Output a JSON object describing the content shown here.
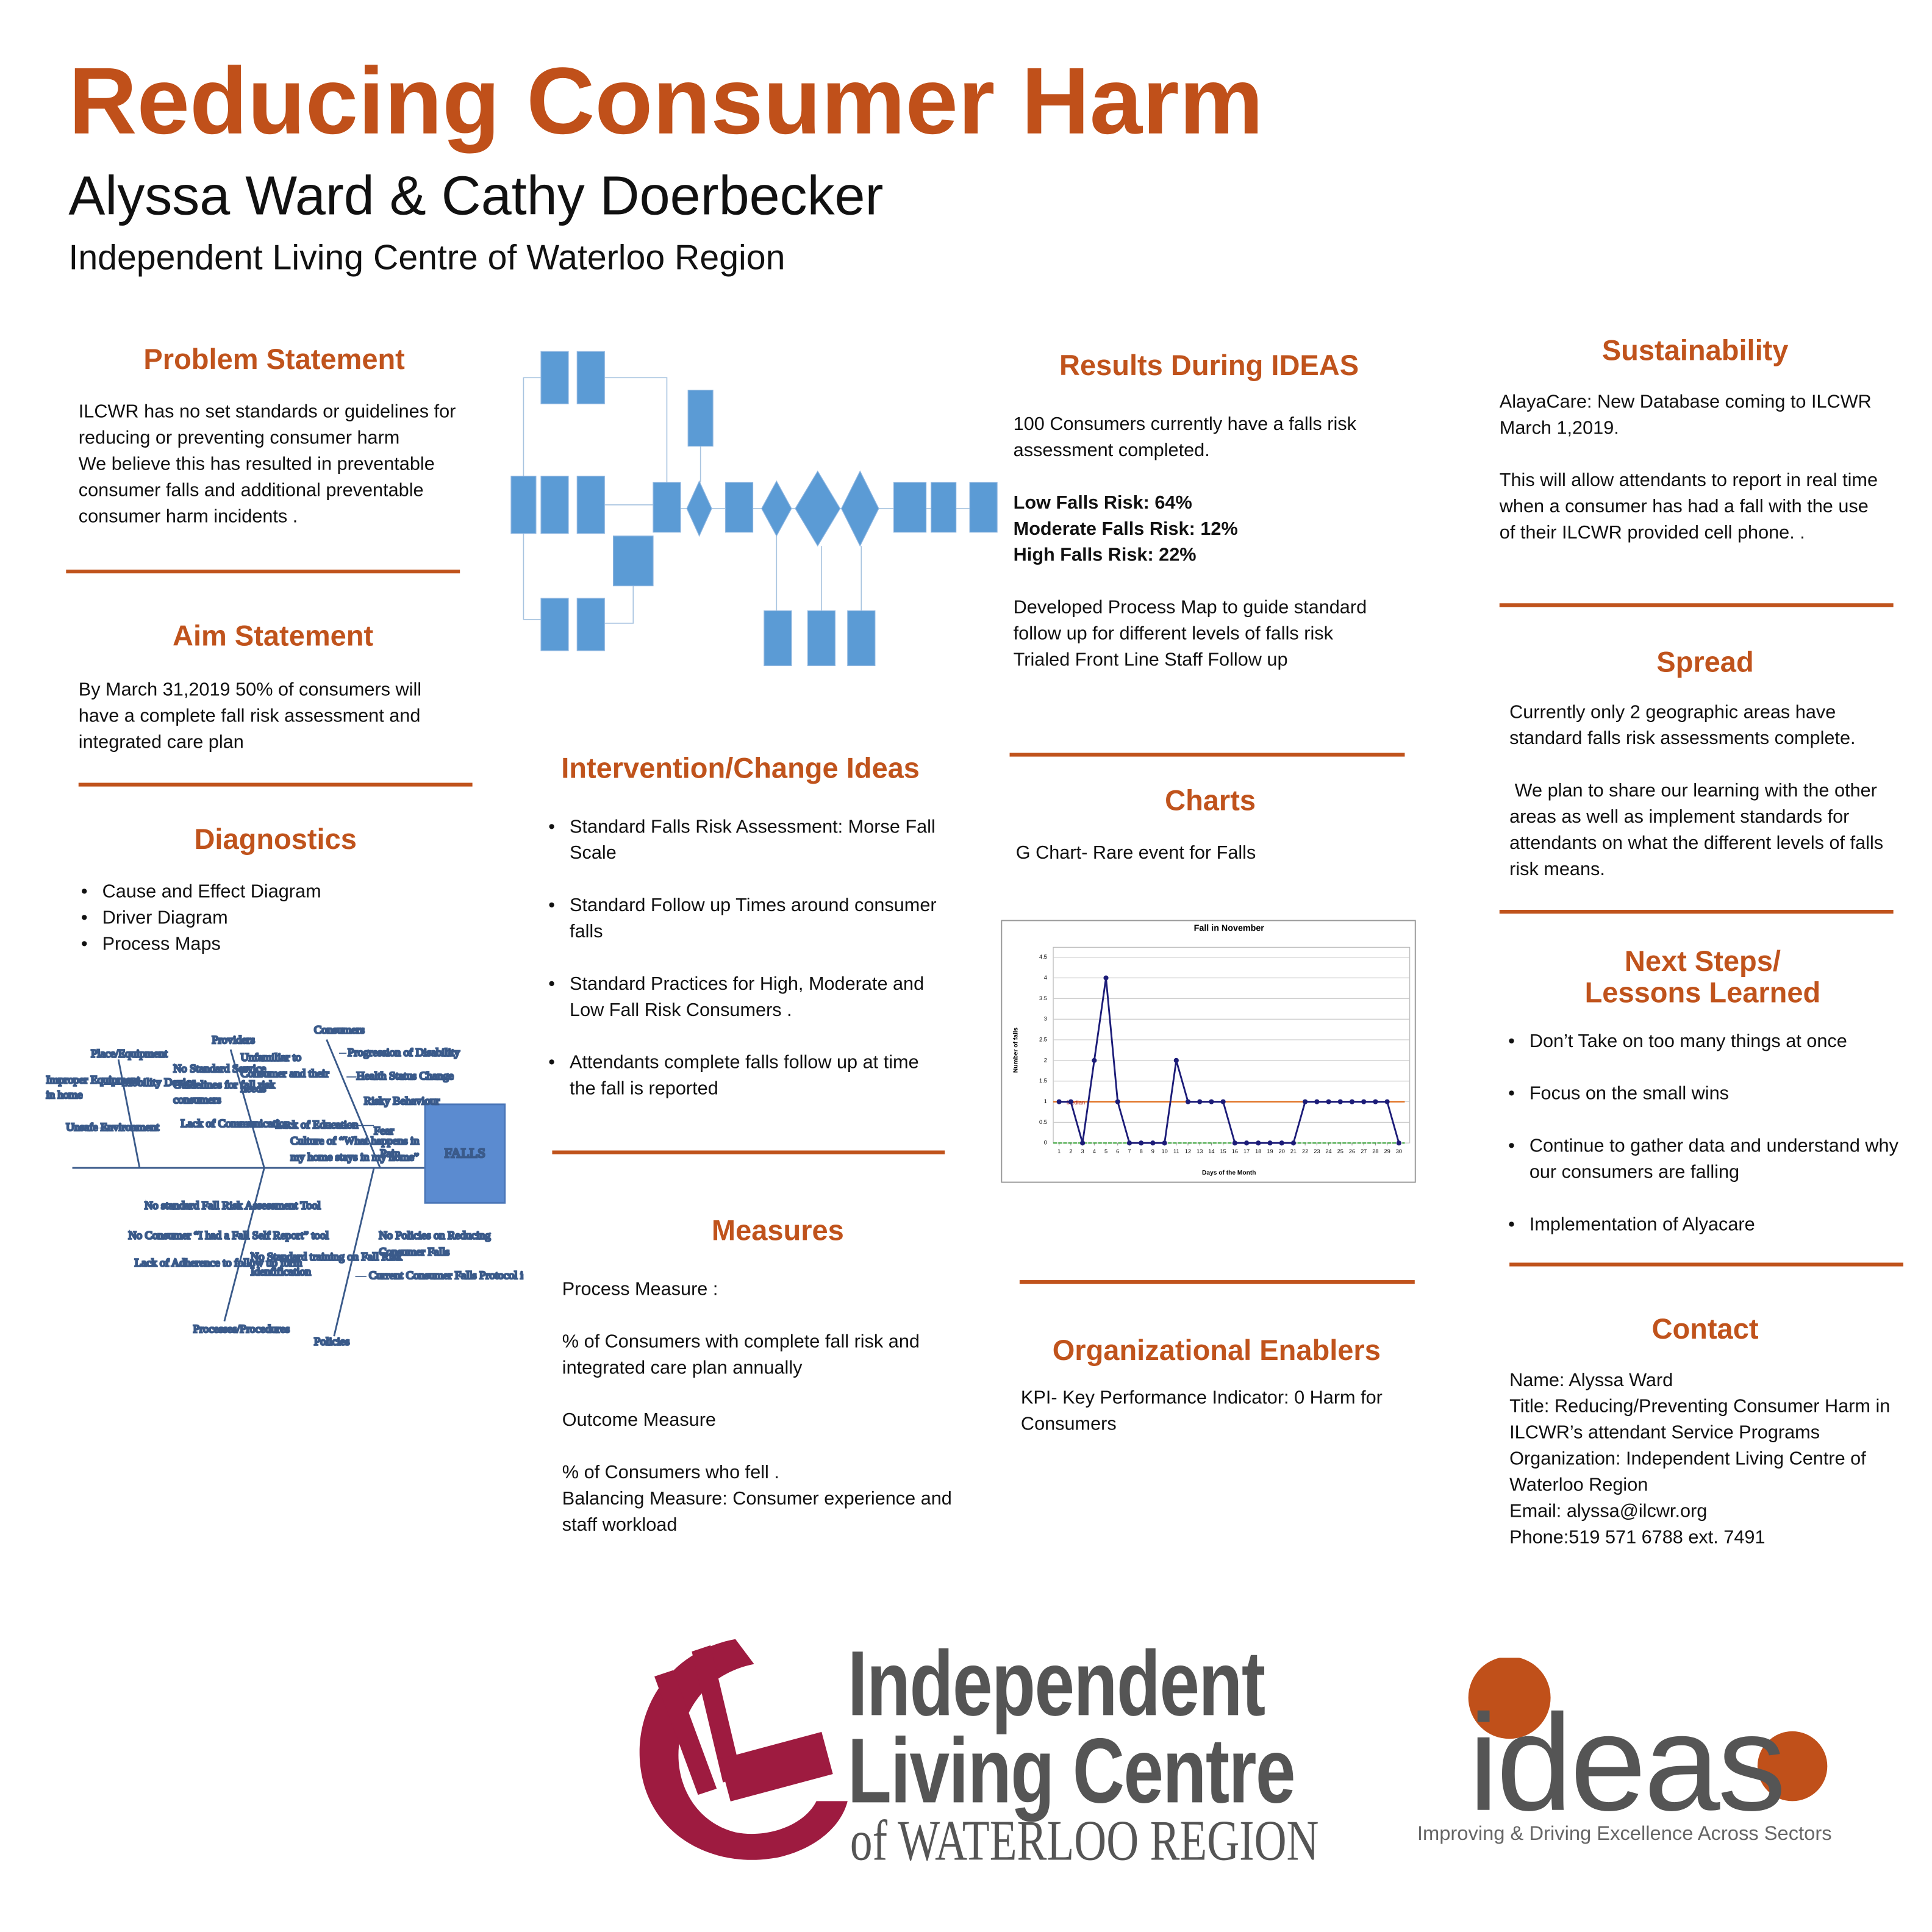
{
  "header": {
    "title": "Reducing Consumer Harm",
    "authors": "Alyssa Ward & Cathy Doerbecker",
    "organization": "Independent Living Centre of Waterloo Region"
  },
  "problem_statement": {
    "heading": "Problem Statement",
    "paragraphs": [
      [
        "ILCWR has no set standards or guidelines for reducing or preventing consumer harm",
        "We believe this has resulted in preventable consumer falls and additional preventable consumer harm incidents ."
      ]
    ]
  },
  "aim_statement": {
    "heading": "Aim Statement",
    "paragraphs": [
      [
        "By March 31,2019 50% of consumers will have a complete fall risk assessment and integrated care plan"
      ]
    ]
  },
  "diagnostics": {
    "heading": "Diagnostics",
    "bullets": [
      "Cause and Effect Diagram",
      "Driver Diagram",
      "Process Maps"
    ]
  },
  "fishbone": {
    "head": "FALLS",
    "labels": [
      "Place/Equipment",
      "Providers",
      "Consumers",
      "Improper Equipment",
      "in home",
      "Mobility Device",
      "No Standard Service",
      "Guidelines for fall risk",
      "consumers",
      "Unfamiliar to",
      "Consumer and their",
      "needs",
      "Progression of Disability",
      "Health Status Change",
      "Risky Behaviour",
      "Unsafe Environment",
      "Lack of Communication",
      "Lack of Education",
      "Culture of “What happens in",
      "my home stays in my home”",
      "Fear",
      "Pain",
      "No standard Fall Risk Assessment Tool",
      "No Consumer “I had a Fall Self Report” tool",
      "Lack of Adherence to follow up form",
      "No Standard training on Fall Risk",
      "Identification",
      "No Policies on Reducing",
      "Consumer Falls",
      "Current Consumer Falls Protocol is staff focused",
      "Processes/Procedures",
      "Policies"
    ]
  },
  "intervention": {
    "heading": "Intervention/Change Ideas",
    "bullets": [
      "Standard Falls Risk Assessment: Morse Fall Scale",
      "Standard Follow up Times around consumer falls",
      "Standard Practices for High, Moderate and Low Fall Risk Consumers .",
      "Attendants complete falls follow up at time the fall is reported"
    ]
  },
  "measures": {
    "heading": "Measures",
    "paragraphs": [
      [
        "Process Measure :"
      ],
      [
        "% of Consumers with complete fall risk and integrated care plan annually"
      ],
      [
        "Outcome Measure"
      ],
      [
        "% of Consumers who fell .",
        "Balancing Measure: Consumer experience and staff workload"
      ]
    ]
  },
  "results": {
    "heading": "Results During IDEAS",
    "paragraphs": [
      [
        "100 Consumers currently have a falls risk assessment completed."
      ],
      [
        "Low Falls Risk: 64%",
        "Moderate Falls Risk: 12%",
        "High Falls Risk: 22%"
      ],
      [
        "Developed Process Map to guide standard follow up for different levels of falls risk",
        "Trialed Front Line Staff Follow up"
      ]
    ]
  },
  "charts": {
    "heading": "Charts",
    "paragraphs": [
      [
        "G Chart- Rare event for Falls"
      ]
    ]
  },
  "chart_data": {
    "type": "line",
    "title": "Fall in November",
    "x_label": "Days of the Month",
    "y_label": "Number of falls",
    "x": [
      1,
      2,
      3,
      4,
      5,
      6,
      7,
      8,
      9,
      10,
      11,
      12,
      13,
      14,
      15,
      16,
      17,
      18,
      19,
      20,
      21,
      22,
      23,
      24,
      25,
      26,
      27,
      28,
      29,
      30
    ],
    "series": [
      {
        "name": "Falls",
        "color": "#1c1c78",
        "values": [
          1,
          1,
          0,
          2,
          4,
          1,
          0,
          0,
          0,
          0,
          2,
          1,
          1,
          1,
          1,
          0,
          0,
          0,
          0,
          0,
          0,
          1,
          1,
          1,
          1,
          1,
          1,
          1,
          1,
          0
        ]
      }
    ],
    "center_line": {
      "label": "Median",
      "value": 1,
      "color": "#e07020"
    },
    "lower_line": {
      "value": 0,
      "color": "#2e9e2e"
    },
    "xlim": [
      0.5,
      30.5
    ],
    "xticks": [
      1,
      2,
      3,
      4,
      5,
      6,
      7,
      8,
      9,
      10,
      11,
      12,
      13,
      14,
      15,
      16,
      17,
      18,
      19,
      20,
      21,
      22,
      23,
      24,
      25,
      26,
      27,
      28,
      29,
      30
    ],
    "ylim": [
      0,
      4.5
    ],
    "yticks": [
      0,
      0.5,
      1,
      1.5,
      2,
      2.5,
      3,
      3.5,
      4,
      4.5
    ],
    "grid": true
  },
  "enablers": {
    "heading": "Organizational Enablers",
    "paragraphs": [
      [
        "KPI- Key Performance Indicator: 0 Harm for Consumers"
      ]
    ]
  },
  "sustainability": {
    "heading": "Sustainability",
    "paragraphs": [
      [
        "AlayaCare: New Database coming to ILCWR March 1,2019."
      ],
      [
        "This will allow attendants to report in real time when a consumer has had a fall with the use of their ILCWR provided cell phone. ."
      ]
    ]
  },
  "spread": {
    "heading": "Spread",
    "paragraphs": [
      [
        "Currently only 2 geographic areas have standard falls risk assessments complete."
      ],
      [
        " We plan to share our learning with the other areas as well as implement standards for attendants on what the different levels of falls risk means."
      ]
    ]
  },
  "next_steps": {
    "heading_lines": [
      "Next Steps/",
      "Lessons Learned"
    ],
    "bullets": [
      "Don’t Take on too many things at once",
      "Focus on the small wins",
      "Continue to gather data and understand why our consumers are falling",
      "Implementation of Alyacare"
    ]
  },
  "contact": {
    "heading": "Contact",
    "paragraphs": [
      [
        "Name: Alyssa Ward",
        "Title: Reducing/Preventing Consumer Harm in ILCWR’s attendant Service Programs",
        "Organization: Independent Living Centre of Waterloo Region",
        "Email: alyssa@ilcwr.org",
        "Phone:519 571 6788 ext. 7491"
      ]
    ]
  },
  "logos": {
    "ilc": [
      "Independent",
      "Living Centre",
      "of WATERLOO REGION"
    ],
    "ideas": "ideas",
    "ideas_tagline": "Improving & Driving Excellence Across Sectors"
  }
}
